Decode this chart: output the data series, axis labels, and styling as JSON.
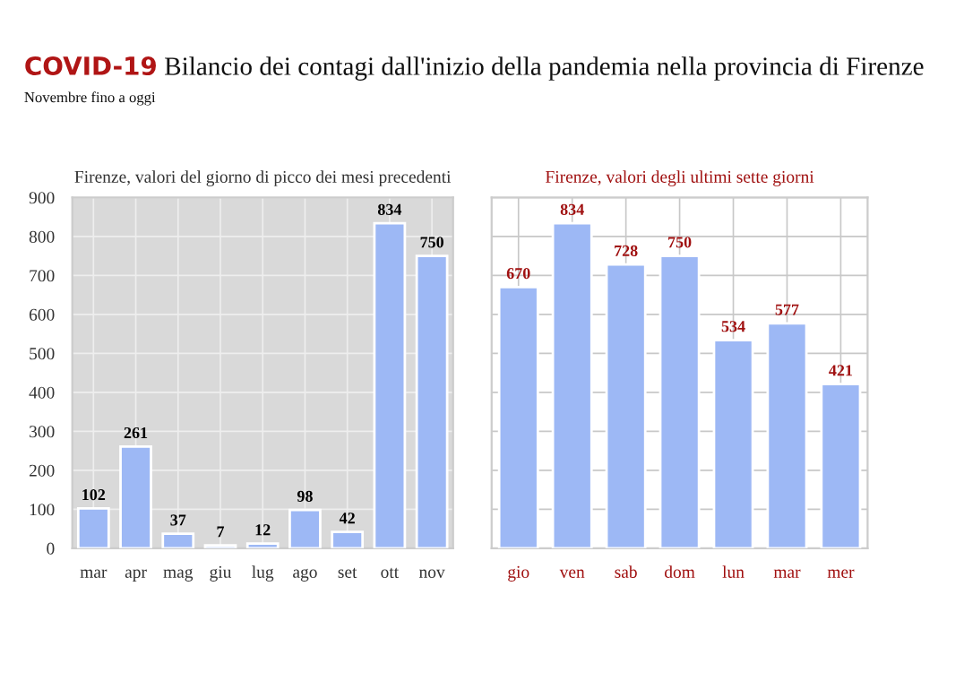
{
  "chart_data": [
    {
      "type": "bar",
      "title": "Firenze, valori del giorno di picco dei mesi precedenti",
      "annotations": [
        "COVID-19 Bilancio dei contagi dall'inizio della pandemia nella provincia di Firenze",
        "Novembre fino a oggi"
      ],
      "categories": [
        "mar",
        "apr",
        "mag",
        "giu",
        "lug",
        "ago",
        "set",
        "ott",
        "nov"
      ],
      "values": [
        102,
        261,
        37,
        7,
        12,
        98,
        42,
        834,
        750
      ],
      "color": "#9db8f5",
      "ylim": [
        0,
        900
      ],
      "yticks": [
        0,
        100,
        200,
        300,
        400,
        500,
        600,
        700,
        800,
        900
      ],
      "grid": true,
      "data_labels": true
    },
    {
      "type": "bar",
      "title": "Firenze, valori degli ultimi sette giorni",
      "categories": [
        "gio",
        "ven",
        "sab",
        "dom",
        "lun",
        "mar",
        "mer"
      ],
      "values": [
        670,
        834,
        728,
        750,
        534,
        577,
        421
      ],
      "color": "#9db8f5",
      "ylim": [
        0,
        900
      ],
      "yticks": [
        {
          "value": 0,
          "label": null
        },
        {
          "value": 100,
          "label": null
        },
        {
          "value": 200,
          "label": null
        },
        {
          "value": 300,
          "label": null
        },
        {
          "value": 400,
          "label": null
        },
        {
          "value": 500,
          "label": null
        },
        {
          "value": 600,
          "label": null
        },
        {
          "value": 700,
          "label": null
        },
        {
          "value": 800,
          "label": null
        },
        {
          "value": 900,
          "label": null
        }
      ],
      "grid": true,
      "data_labels": true,
      "tick_labels": "x"
    }
  ]
}
